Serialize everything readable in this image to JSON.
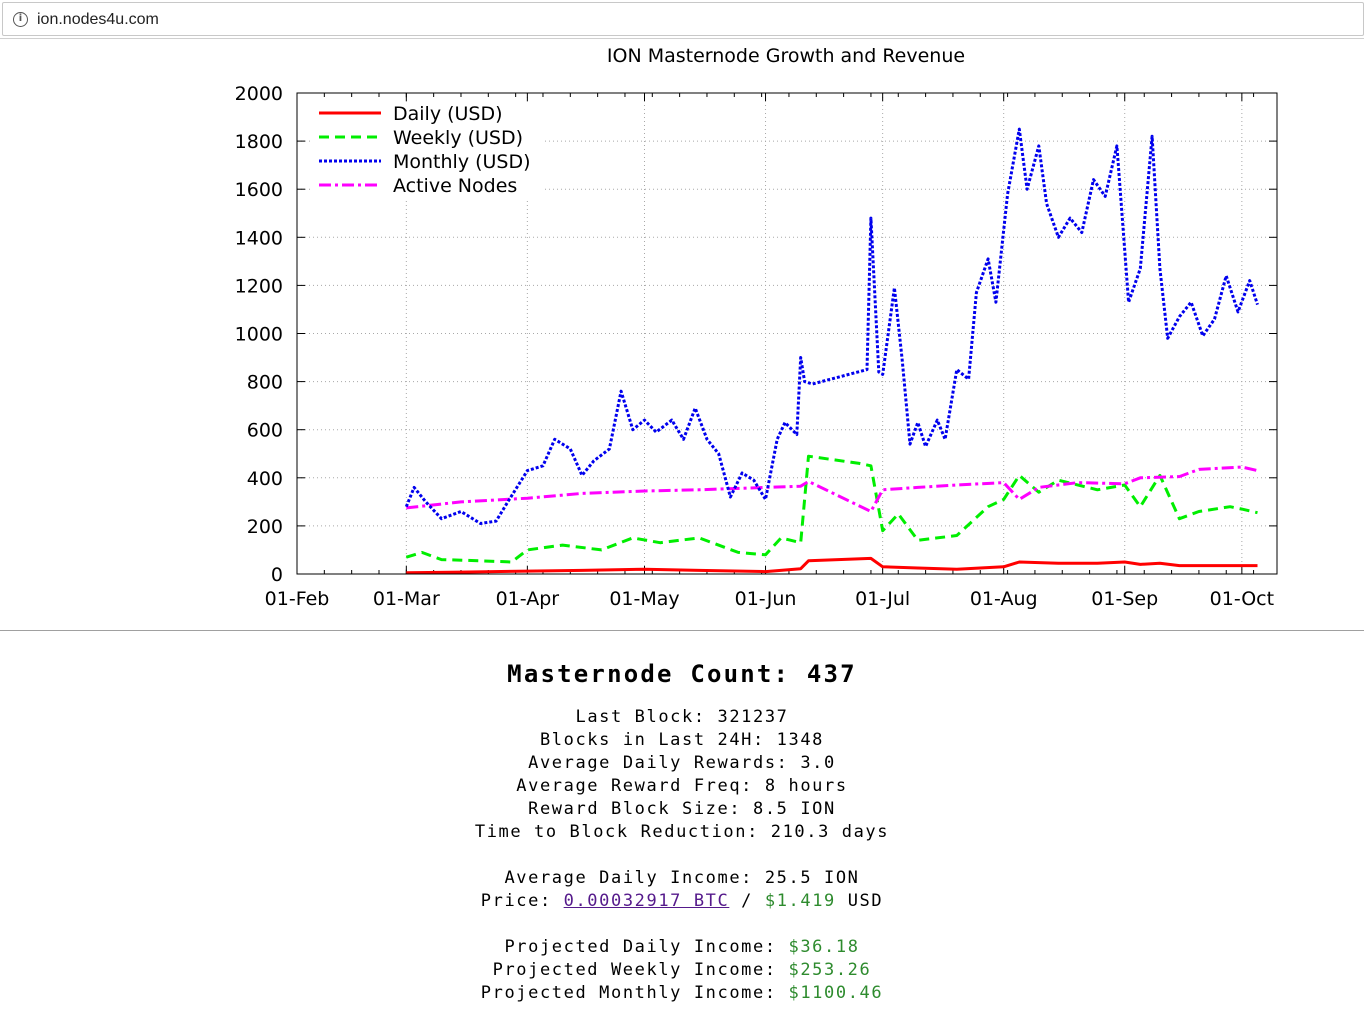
{
  "browser": {
    "url": "ion.nodes4u.com"
  },
  "chart_data": {
    "type": "line",
    "title": "ION Masternode Growth and Revenue",
    "xlabel": "",
    "ylabel": "",
    "ylim": [
      0,
      2000
    ],
    "yticks": [
      0,
      200,
      400,
      600,
      800,
      1000,
      1200,
      1400,
      1600,
      1800,
      2000
    ],
    "xlim": [
      "2018-02-01",
      "2018-10-10"
    ],
    "xticks": [
      "01-Feb",
      "01-Mar",
      "01-Apr",
      "01-May",
      "01-Jun",
      "01-Jul",
      "01-Aug",
      "01-Sep",
      "01-Oct"
    ],
    "grid": true,
    "legend_position": "top-left",
    "series": [
      {
        "name": "Daily (USD)",
        "color": "#ff0000",
        "style": "solid",
        "x": [
          "2018-03-01",
          "2018-03-15",
          "2018-04-01",
          "2018-04-15",
          "2018-05-01",
          "2018-05-15",
          "2018-06-01",
          "2018-06-10",
          "2018-06-12",
          "2018-06-28",
          "2018-07-01",
          "2018-07-10",
          "2018-07-20",
          "2018-08-01",
          "2018-08-05",
          "2018-08-15",
          "2018-08-25",
          "2018-09-01",
          "2018-09-05",
          "2018-09-10",
          "2018-09-15",
          "2018-10-01",
          "2018-10-05"
        ],
        "values": [
          5,
          8,
          12,
          15,
          20,
          15,
          10,
          22,
          55,
          65,
          30,
          25,
          20,
          30,
          50,
          45,
          45,
          50,
          40,
          45,
          35,
          35,
          35
        ]
      },
      {
        "name": "Weekly (USD)",
        "color": "#00ee00",
        "style": "dashed",
        "x": [
          "2018-03-01",
          "2018-03-05",
          "2018-03-10",
          "2018-03-20",
          "2018-03-28",
          "2018-04-01",
          "2018-04-10",
          "2018-04-20",
          "2018-04-28",
          "2018-05-05",
          "2018-05-15",
          "2018-05-25",
          "2018-06-01",
          "2018-06-05",
          "2018-06-10",
          "2018-06-12",
          "2018-06-25",
          "2018-06-28",
          "2018-07-01",
          "2018-07-05",
          "2018-07-10",
          "2018-07-20",
          "2018-07-28",
          "2018-08-01",
          "2018-08-05",
          "2018-08-10",
          "2018-08-15",
          "2018-08-25",
          "2018-09-01",
          "2018-09-05",
          "2018-09-10",
          "2018-09-15",
          "2018-09-20",
          "2018-09-28",
          "2018-10-01",
          "2018-10-05"
        ],
        "values": [
          70,
          90,
          60,
          55,
          50,
          100,
          120,
          100,
          150,
          130,
          150,
          90,
          80,
          150,
          130,
          490,
          460,
          450,
          180,
          250,
          140,
          160,
          280,
          310,
          410,
          340,
          390,
          350,
          370,
          280,
          410,
          230,
          260,
          280,
          270,
          255
        ]
      },
      {
        "name": "Monthly (USD)",
        "color": "#0000ee",
        "style": "dotted",
        "x": [
          "2018-03-01",
          "2018-03-03",
          "2018-03-06",
          "2018-03-10",
          "2018-03-15",
          "2018-03-20",
          "2018-03-24",
          "2018-03-27",
          "2018-04-01",
          "2018-04-05",
          "2018-04-08",
          "2018-04-12",
          "2018-04-15",
          "2018-04-18",
          "2018-04-22",
          "2018-04-25",
          "2018-04-28",
          "2018-05-01",
          "2018-05-04",
          "2018-05-08",
          "2018-05-11",
          "2018-05-14",
          "2018-05-17",
          "2018-05-20",
          "2018-05-23",
          "2018-05-26",
          "2018-05-29",
          "2018-06-01",
          "2018-06-04",
          "2018-06-06",
          "2018-06-09",
          "2018-06-10",
          "2018-06-11",
          "2018-06-13",
          "2018-06-27",
          "2018-06-28",
          "2018-06-30",
          "2018-07-01",
          "2018-07-04",
          "2018-07-06",
          "2018-07-08",
          "2018-07-10",
          "2018-07-12",
          "2018-07-15",
          "2018-07-17",
          "2018-07-20",
          "2018-07-23",
          "2018-07-25",
          "2018-07-28",
          "2018-07-30",
          "2018-08-02",
          "2018-08-05",
          "2018-08-07",
          "2018-08-10",
          "2018-08-12",
          "2018-08-15",
          "2018-08-18",
          "2018-08-21",
          "2018-08-24",
          "2018-08-27",
          "2018-08-30",
          "2018-09-02",
          "2018-09-05",
          "2018-09-08",
          "2018-09-10",
          "2018-09-12",
          "2018-09-15",
          "2018-09-18",
          "2018-09-21",
          "2018-09-24",
          "2018-09-27",
          "2018-09-30",
          "2018-10-03",
          "2018-10-05"
        ],
        "values": [
          280,
          360,
          300,
          230,
          260,
          210,
          220,
          300,
          430,
          450,
          560,
          520,
          410,
          470,
          520,
          760,
          600,
          640,
          590,
          640,
          560,
          690,
          560,
          500,
          320,
          420,
          390,
          310,
          560,
          630,
          580,
          900,
          800,
          790,
          850,
          1480,
          840,
          830,
          1190,
          890,
          540,
          630,
          530,
          640,
          560,
          850,
          810,
          1170,
          1310,
          1130,
          1580,
          1850,
          1600,
          1780,
          1540,
          1400,
          1480,
          1420,
          1640,
          1570,
          1780,
          1130,
          1270,
          1820,
          1270,
          980,
          1070,
          1130,
          990,
          1060,
          1240,
          1090,
          1220,
          1120
        ]
      },
      {
        "name": "Active Nodes",
        "color": "#ff00ff",
        "style": "dashdot",
        "x": [
          "2018-03-01",
          "2018-03-15",
          "2018-04-01",
          "2018-04-15",
          "2018-05-01",
          "2018-05-15",
          "2018-06-01",
          "2018-06-10",
          "2018-06-12",
          "2018-06-28",
          "2018-07-01",
          "2018-07-10",
          "2018-07-20",
          "2018-08-01",
          "2018-08-05",
          "2018-08-10",
          "2018-08-20",
          "2018-09-01",
          "2018-09-05",
          "2018-09-15",
          "2018-09-20",
          "2018-10-01",
          "2018-10-05"
        ],
        "values": [
          275,
          300,
          315,
          335,
          345,
          350,
          360,
          365,
          385,
          260,
          350,
          360,
          370,
          380,
          310,
          360,
          380,
          375,
          400,
          405,
          435,
          445,
          430
        ]
      }
    ]
  },
  "stats": {
    "masternode_count": "Masternode Count: 437",
    "last_block": "Last Block: 321237",
    "blocks_24h": "Blocks in Last 24H: 1348",
    "avg_daily_rewards": "Average Daily Rewards: 3.0",
    "avg_reward_freq": "Average Reward Freq: 8 hours",
    "reward_block_size": "Reward Block Size: 8.5 ION",
    "time_to_reduction": "Time to Block Reduction: 210.3 days",
    "avg_daily_income": "Average Daily Income: 25.5 ION",
    "price_label": "Price: ",
    "price_btc": "0.00032917 BTC",
    "price_sep": " / ",
    "price_usd": "$1.419",
    "price_unit": " USD",
    "proj_daily_label": "Projected Daily Income: ",
    "proj_daily_value": "$36.18",
    "proj_weekly_label": "Projected Weekly Income: ",
    "proj_weekly_value": "$253.26",
    "proj_monthly_label": "Projected Monthly Income: ",
    "proj_monthly_value": "$1100.46"
  }
}
